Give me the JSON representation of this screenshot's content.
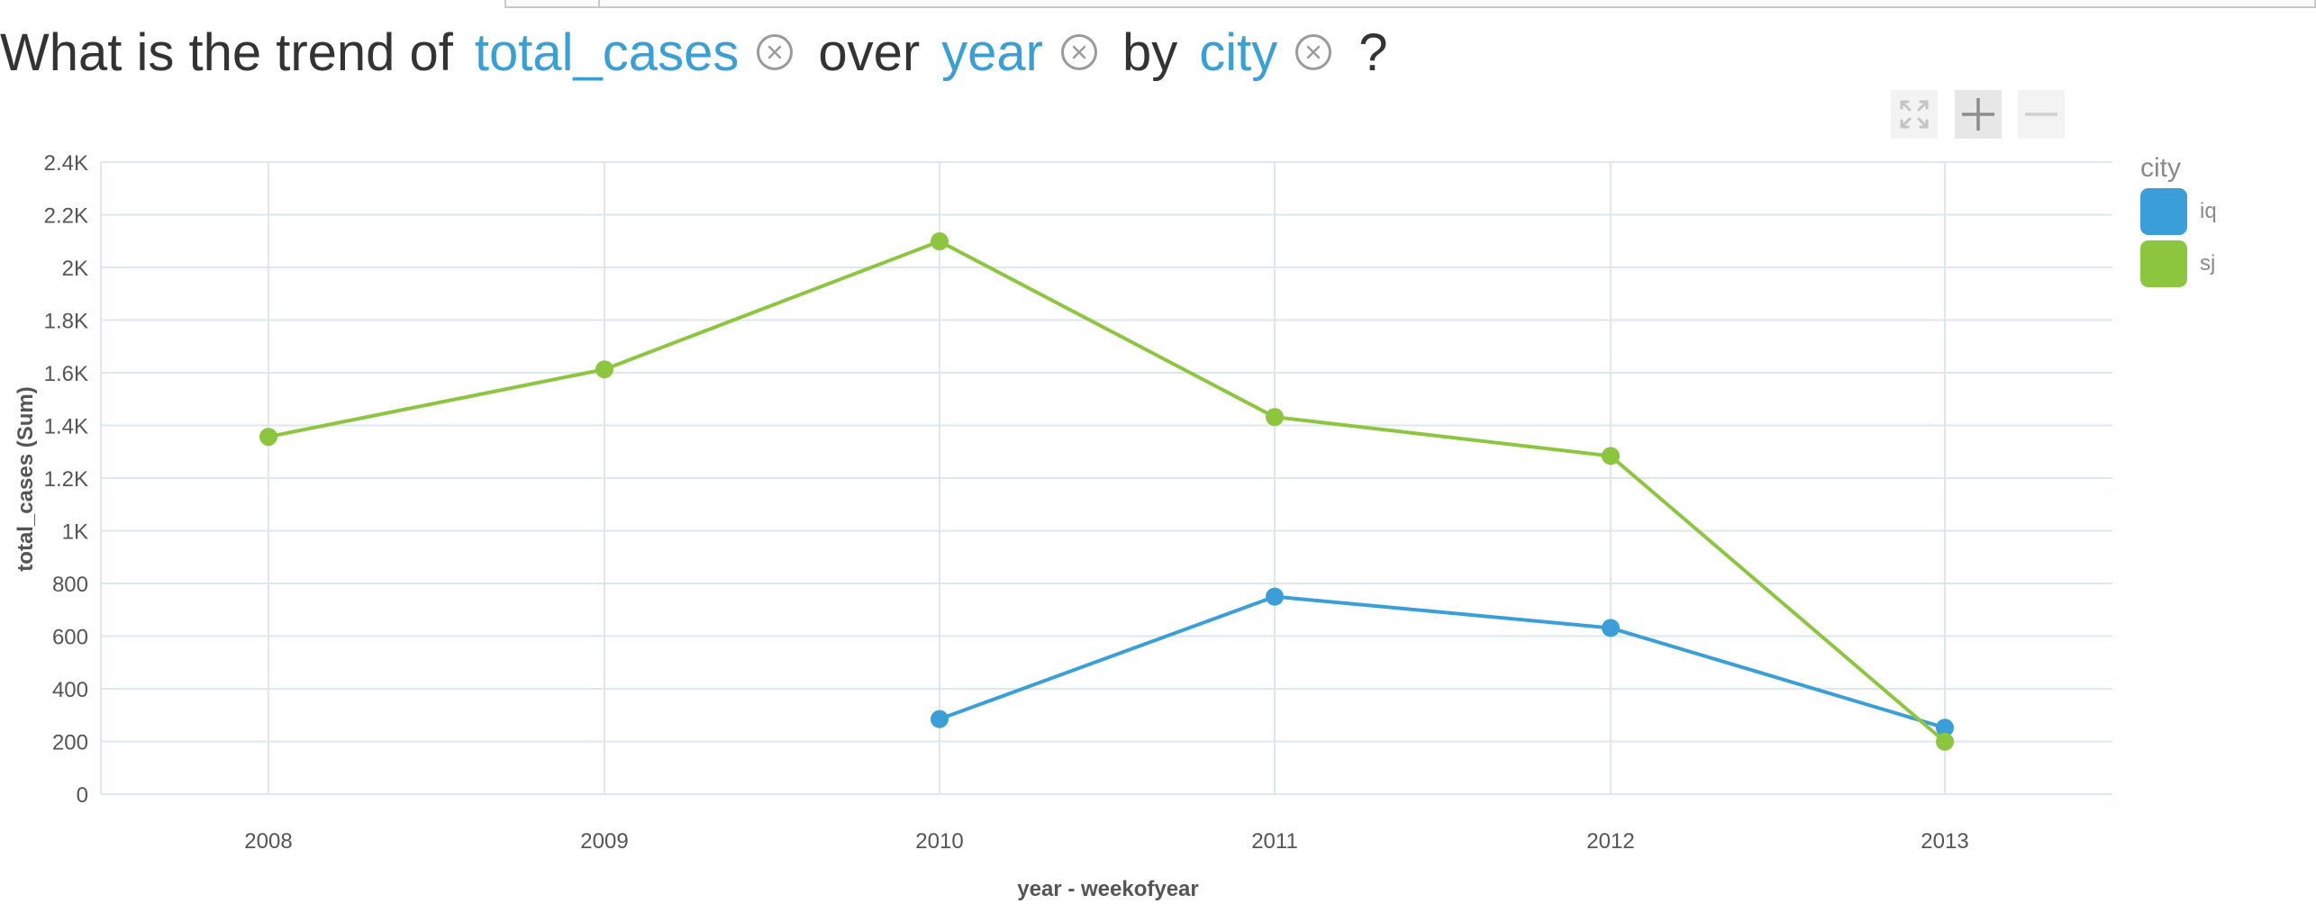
{
  "question": {
    "prefix": "What is the trend of",
    "measure": "total_cases",
    "over_word": "over",
    "dimension": "year",
    "by_word": "by",
    "group": "city",
    "suffix": "?"
  },
  "controls": {
    "zoom_fit_icon": "fit-to-screen-icon",
    "zoom_in_icon": "plus-icon",
    "zoom_out_icon": "minus-icon"
  },
  "chart_data": {
    "type": "line",
    "x": [
      "2008",
      "2009",
      "2010",
      "2011",
      "2012",
      "2013"
    ],
    "series": [
      {
        "name": "iq",
        "color": "#3a9fd8",
        "values": [
          null,
          null,
          285,
          750,
          631,
          252
        ]
      },
      {
        "name": "sj",
        "color": "#8cc63f",
        "values": [
          1357,
          1613,
          2099,
          1432,
          1284,
          199
        ]
      }
    ],
    "xlabel": "year - weekofyear",
    "ylabel": "total_cases (Sum)",
    "ylim": [
      0,
      2400
    ],
    "yticks": [
      0,
      200,
      400,
      600,
      800,
      1000,
      1200,
      1400,
      1600,
      1800,
      2000,
      2200,
      2400
    ],
    "ytick_labels": [
      "0",
      "200",
      "400",
      "600",
      "800",
      "1K",
      "1.2K",
      "1.4K",
      "1.6K",
      "1.8K",
      "2K",
      "2.2K",
      "2.4K"
    ],
    "grid": true,
    "legend_title": "city",
    "legend_position": "right"
  }
}
